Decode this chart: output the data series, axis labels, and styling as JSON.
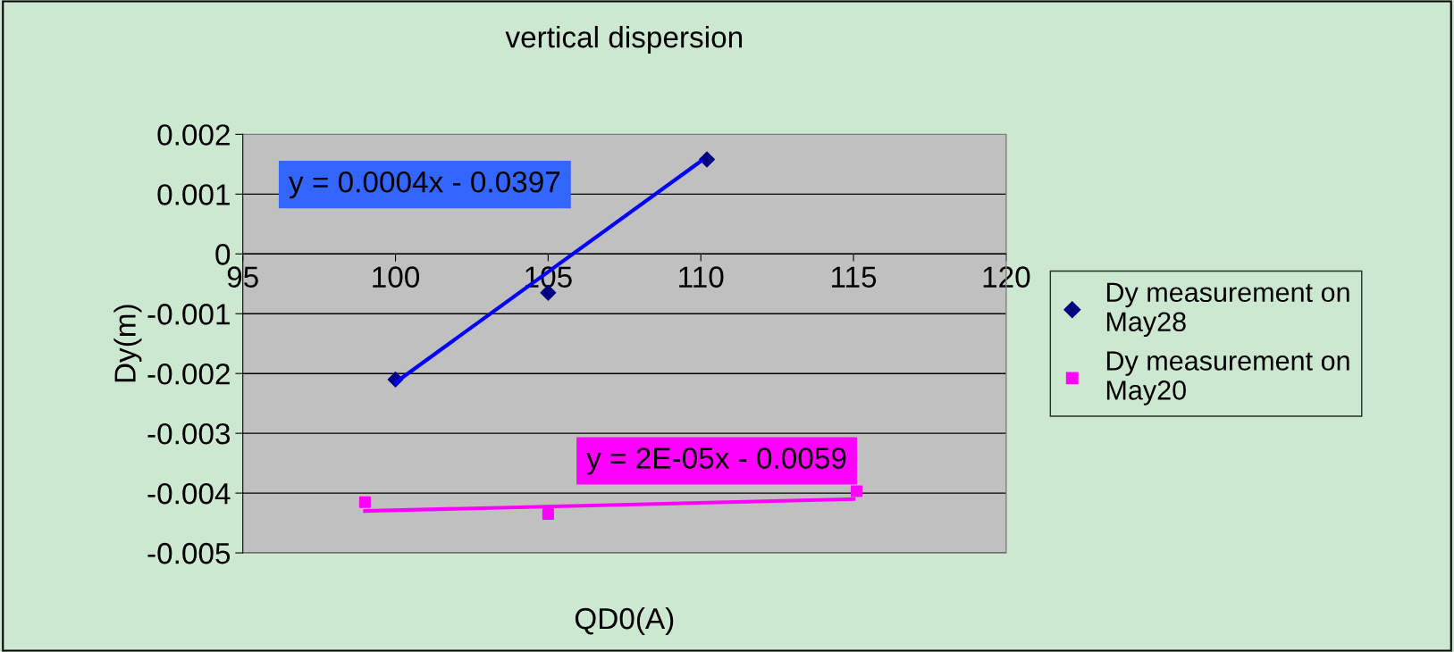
{
  "chart_data": {
    "type": "scatter",
    "title": "vertical dispersion",
    "xlabel": "QD0(A)",
    "ylabel": "Dy(m)",
    "xlim": [
      95,
      120
    ],
    "xticks": [
      95,
      100,
      105,
      110,
      115,
      120
    ],
    "ylim": [
      -0.005,
      0.002
    ],
    "yticks": [
      {
        "value": -0.005,
        "label": "-0.005"
      },
      {
        "value": -0.004,
        "label": "-0.004"
      },
      {
        "value": -0.003,
        "label": "-0.003"
      },
      {
        "value": -0.002,
        "label": "-0.002"
      },
      {
        "value": -0.001,
        "label": "-0.001"
      },
      {
        "value": 0,
        "label": "0"
      },
      {
        "value": 0.001,
        "label": "0.001"
      },
      {
        "value": 0.002,
        "label": "0.002"
      }
    ],
    "grid": "y",
    "legend": "right",
    "series": [
      {
        "name": "Dy measurement on May28",
        "color": "#000080",
        "marker": "diamond",
        "x": [
          100,
          105,
          110.2
        ],
        "values": [
          -0.0021,
          -0.00065,
          0.00158
        ]
      },
      {
        "name": "Dy measurement on May20",
        "color": "#ff00ff",
        "marker": "square",
        "x": [
          99,
          105,
          115.1
        ],
        "values": [
          -0.00415,
          -0.00435,
          -0.00397
        ]
      },
      {
        "type": "line",
        "color": "#0000ff",
        "x": [
          100,
          110
        ],
        "values": [
          -0.00215,
          0.00155
        ]
      },
      {
        "type": "line",
        "color": "#ff00ff",
        "x": [
          99,
          115
        ],
        "values": [
          -0.0043,
          -0.0041
        ]
      }
    ],
    "annotations": [
      "y = 0.0004x - 0.0397",
      "y = 2E-05x - 0.0059"
    ]
  }
}
